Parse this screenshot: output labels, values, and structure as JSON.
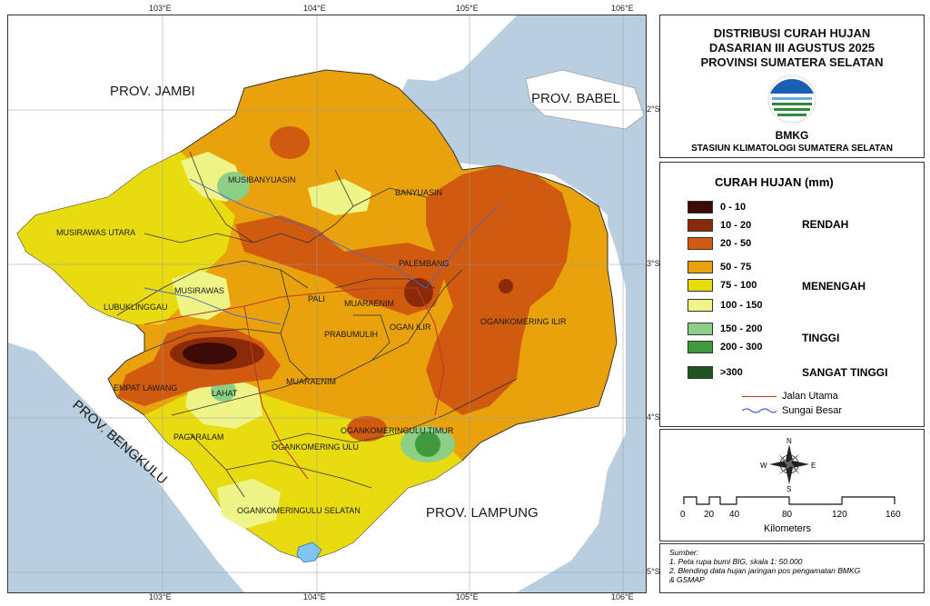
{
  "map": {
    "lon_ticks": [
      "103°E",
      "104°E",
      "105°E",
      "106°E"
    ],
    "lat_ticks": [
      "2°S",
      "3°S",
      "4°S",
      "5°S"
    ],
    "provinces": {
      "jambi": "PROV. JAMBI",
      "babel": "PROV. BABEL",
      "bengkulu": "PROV. BENGKULU",
      "lampung": "PROV. LAMPUNG"
    },
    "regions": {
      "musibanyuasin": "MUSIBANYUASIN",
      "banyuasin": "BANYUASIN",
      "musirawas_utara": "MUSIRAWAS UTARA",
      "palembang": "PALEMBANG",
      "musirawas": "MUSIRAWAS",
      "lubuklinggau": "LUBUKLINGGAU",
      "pali": "PALI",
      "muaraenim_north": "MUARAENIM",
      "ogan_ilir": "OGAN ILIR",
      "oki": "OGANKOMERING ILIR",
      "prabumulih": "PRABUMULIH",
      "empat_lawang": "EMPAT LAWANG",
      "lahat": "LAHAT",
      "muaraenim": "MUARAENIM",
      "okut": "OGANKOMERINGULU TIMUR",
      "pagaralam": "PAGARALAM",
      "oku": "OGANKOMERING ULU",
      "okus": "OGANKOMERINGULU SELATAN"
    }
  },
  "title": {
    "line1": "DISTRIBUSI CURAH HUJAN",
    "line2": "DASARIAN III AGUSTUS 2025",
    "line3": "PROVINSI SUMATERA SELATAN",
    "agency": "BMKG",
    "station": "STASIUN KLIMATOLOGI SUMATERA SELATAN"
  },
  "legend": {
    "title": "CURAH HUJAN (mm)",
    "classes": [
      {
        "label": "0 - 10",
        "color": "#3b0a06"
      },
      {
        "label": "10 - 20",
        "color": "#8a2a06"
      },
      {
        "label": "20 - 50",
        "color": "#d05a0e"
      },
      {
        "label": "50 - 75",
        "color": "#e9a20b"
      },
      {
        "label": "75 - 100",
        "color": "#e8dc10"
      },
      {
        "label": "100 - 150",
        "color": "#eef486"
      },
      {
        "label": "150 - 200",
        "color": "#8dcf86"
      },
      {
        "label": "200 - 300",
        "color": "#3e9a3c"
      },
      {
        "label": ">300",
        "color": "#1e5420"
      }
    ],
    "categories": {
      "rendah": "RENDAH",
      "menengah": "MENENGAH",
      "tinggi": "TINGGI",
      "sangat_tinggi": "SANGAT TINGGI"
    },
    "road": "Jalan Utama",
    "river": "Sungai Besar",
    "road_color": "#c0392b",
    "river_color": "#4a66c9"
  },
  "compass": {
    "n": "N",
    "s": "S",
    "e": "E",
    "w": "W"
  },
  "scale": {
    "ticks": [
      "0",
      "20",
      "40",
      "80",
      "120",
      "160"
    ],
    "unit": "Kilometers"
  },
  "source": {
    "heading": "Sumber:",
    "line1": "1. Peta rupa bumi BIG, skala 1: 50.000",
    "line2": "2. Blending data hujan jaringan pos pengamatan BMKG",
    "line3": "& GSMAP"
  }
}
